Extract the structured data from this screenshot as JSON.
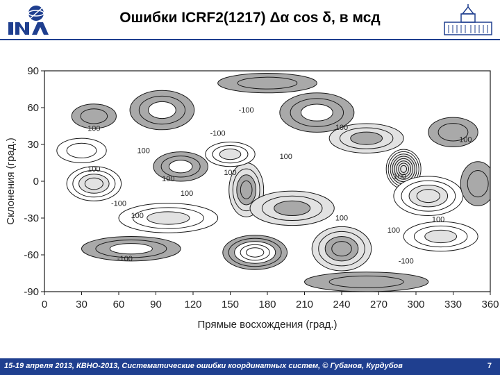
{
  "slide": {
    "title": "Ошибки ICRF2(1217) Δα cos δ,  в мсд",
    "footer": "15-19  апреля  2013,  КВНО-2013,  Систематические ошибки координатных систем, © Губанов, Курдубов",
    "page_number": "7"
  },
  "colors": {
    "brand": "#1f3f8f",
    "fill_light": "#e2e2e2",
    "fill_dark": "#a9a9a9",
    "line": "#1a1a1a"
  },
  "chart_data": {
    "type": "heatmap",
    "xlabel": "Прямые восхождения (град.)",
    "ylabel": "Склонения (град.)",
    "xlim": [
      0,
      360
    ],
    "ylim": [
      -90,
      90
    ],
    "x_ticks": [
      0,
      30,
      60,
      90,
      120,
      150,
      180,
      210,
      240,
      270,
      300,
      330,
      360
    ],
    "y_ticks": [
      90,
      60,
      30,
      0,
      -30,
      -60,
      -90
    ],
    "contour_labels": [
      {
        "text": "-100",
        "x": 163,
        "y": 56
      },
      {
        "text": "100",
        "x": 40,
        "y": 41
      },
      {
        "text": "-100",
        "x": 140,
        "y": 37
      },
      {
        "text": "100",
        "x": 240,
        "y": 42
      },
      {
        "text": "100",
        "x": 80,
        "y": 23
      },
      {
        "text": "100",
        "x": 340,
        "y": 32
      },
      {
        "text": "100",
        "x": 40,
        "y": 8
      },
      {
        "text": "100",
        "x": 100,
        "y": 0
      },
      {
        "text": "100",
        "x": 150,
        "y": 5
      },
      {
        "text": "100",
        "x": 195,
        "y": 18
      },
      {
        "text": "100",
        "x": 287,
        "y": 2
      },
      {
        "text": "-100",
        "x": 60,
        "y": -20
      },
      {
        "text": "100",
        "x": 115,
        "y": -12
      },
      {
        "text": "100",
        "x": 75,
        "y": -30
      },
      {
        "text": "100",
        "x": 240,
        "y": -32
      },
      {
        "text": "100",
        "x": 282,
        "y": -42
      },
      {
        "text": "100",
        "x": 318,
        "y": -33
      },
      {
        "text": "-100",
        "x": 65,
        "y": -65
      },
      {
        "text": "-100",
        "x": 292,
        "y": -67
      }
    ]
  }
}
